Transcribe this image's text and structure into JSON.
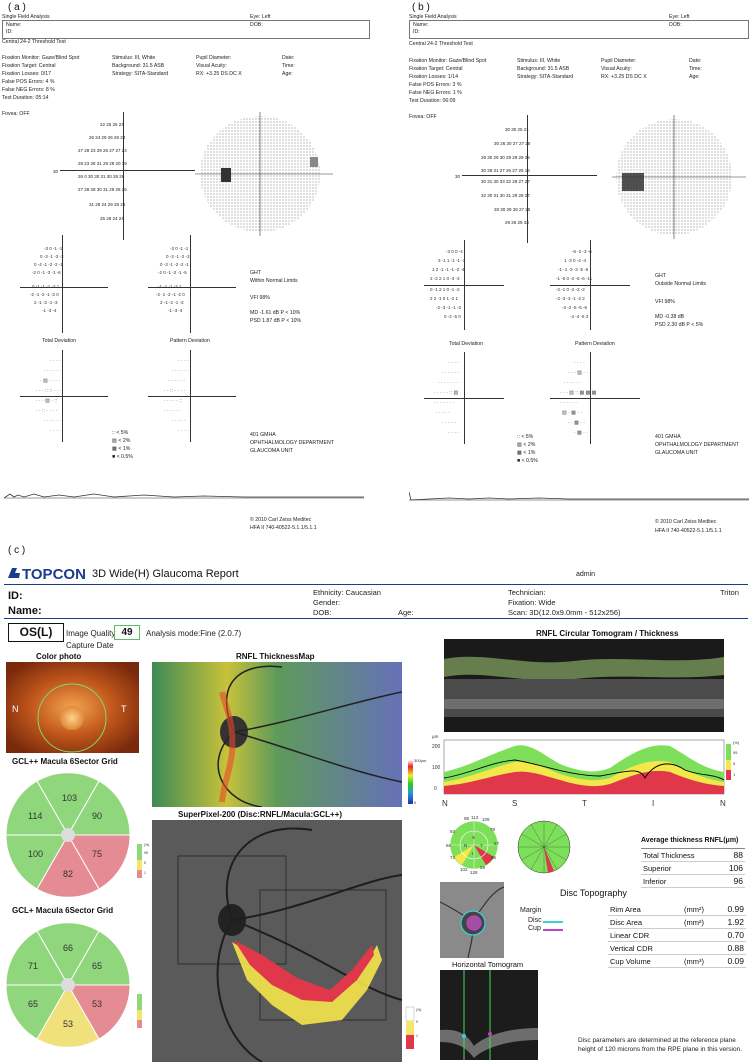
{
  "panel_labels": {
    "a": "( a )",
    "b": "( b )",
    "c": "( c )"
  },
  "hfa_a": {
    "title": "Single Field Analysis",
    "eye": "Eye: Left",
    "name": "Name:",
    "dob": "DOB:",
    "id": "ID:",
    "test": "Central 24-2 Threshold Test",
    "fixation_monitor": "Fixation Monitor: Gaze/Blind Spot",
    "fixation_target": "Fixation Target: Central",
    "fixation_losses": "Fixation Losses: 0/17",
    "false_pos": "False POS Errors:  4 %",
    "false_neg": "False NEG Errors:  8 %",
    "test_duration": "Test Duration: 05:14",
    "fovea": "Fovea: OFF",
    "stimulus": "Stimulus: III, White",
    "background": "Background: 31.5 ASB",
    "strategy": "Strategy: SITA-Standard",
    "pupil": "Pupil Diameter:",
    "acuity": "Visual Acuity:",
    "rx": "RX: +3.25 DS     DC  X",
    "date": "Date:",
    "time": "Time:",
    "age": "Age:",
    "ght_label": "GHT",
    "ght_value": "Within Normal Limits",
    "vfi": "VFI   98%",
    "md": "MD     -1.61 dB  P < 10%",
    "psd": "PSD    1.87 dB  P < 10%",
    "total_dev": "Total Deviation",
    "pattern_dev": "Pattern Deviation",
    "legend": [
      ":: < 5%",
      "▨ < 2%",
      "▩ < 1%",
      "■ < 0.5%"
    ],
    "site1": "401 GMHA",
    "site2": "OPHTHALMOLOGY DEPARTMENT",
    "site3": "GLAUCOMA UNIT",
    "copyright": "© 2010 Carl Zeiss Meditec",
    "version": "HFA II 740-40522-5.1.1/5.1.1",
    "axis_num": "30",
    "threshold_rows": [
      "22   25   26   24",
      "26   24   29   26   26   24",
      "27   28   23   29   26   27   27   24",
      "28   23   28   31   29   28   20   19",
      "26   0    30   30   31   30   28   26",
      "27   28   28   30   31   29   28   25",
      "31   28   24   29   28   26",
      "25   28   24   24"
    ]
  },
  "hfa_b": {
    "title": "Single Field Analysis",
    "eye": "Eye: Left",
    "name": "Name:",
    "dob": "DOB:",
    "id": "ID:",
    "test": "Central 24-2 Threshold Test",
    "fixation_monitor": "Fixation Monitor: Gaze/Blind Spot",
    "fixation_target": "Fixation Target: Central",
    "fixation_losses": "Fixation Losses: 1/14",
    "false_pos": "False POS Errors:  3 %",
    "false_neg": "False NEG Errors:  1 %",
    "test_duration": "Test Duration: 06:09",
    "fovea": "Fovea: OFF",
    "stimulus": "Stimulus: III, White",
    "background": "Background: 31.5 ASB",
    "strategy": "Strategy: SITA-Standard",
    "pupil": "Pupil Diameter:",
    "acuity": "Visual Acuity:",
    "rx": "RX: +3.25 DS     DC  X",
    "date": "Date:",
    "time": "Time:",
    "age": "Age:",
    "ght_label": "GHT",
    "ght_value": "Outside Normal Limits",
    "vfi": "VFI   98%",
    "md": "MD     -0.38 dB",
    "psd": "PSD    2.30 dB  P < 5%",
    "total_dev": "Total Deviation",
    "pattern_dev": "Pattern Deviation",
    "legend": [
      ":: < 5%",
      "▨ < 2%",
      "▩ < 1%",
      "■ < 0.5%"
    ],
    "site1": "401 GMHA",
    "site2": "OPHTHALMOLOGY DEPARTMENT",
    "site3": "GLAUCOMA UNIT",
    "copyright": "© 2010 Carl Zeiss Meditec",
    "version": "HFA II 740-40522-5.1.1/5.1.1",
    "axis_num": "30",
    "threshold_rows": [
      "30   30   25   21",
      "30   26   30   27   27   25",
      "29   30   29   30   29   29   29   25",
      "30   28   31   27   26   27   25   16",
      "30   31   30   33   32   28   27   27",
      "32   30   31   30   31   29   28   27",
      "28   30   29   28   27   25",
      "29   26   29   33"
    ]
  },
  "topcon": {
    "logo": "TOPCON",
    "report_title": "3D Wide(H) Glaucoma Report",
    "admin": "admin",
    "triton": "Triton",
    "id_label": "ID:",
    "name_label": "Name:",
    "ethnicity": "Ethnicity: Caucasian",
    "gender": "Gender:",
    "dob": "DOB:",
    "age": "Age:",
    "technician": "Technician:",
    "fixation": "Fixation: Wide",
    "scan": "Scan: 3D(12.0x9.0mm - 512x256)",
    "eye": "OS(L)",
    "image_quality_label": "Image Quality",
    "image_quality": "49",
    "analysis_mode": "Analysis mode:Fine (2.0.7)",
    "capture_date": "Capture Date",
    "color_photo": "Color photo",
    "photo_n": "N",
    "photo_t": "T",
    "rnfl_map": "RNFL ThicknessMap",
    "scale_top": "300μm",
    "scale_bottom": "0",
    "superpixel": "SuperPixel-200 (Disc:RNFL/Macula:GCL++)",
    "gclpp_title": "GCL++ Macula 6Sector Grid",
    "gclp_title": "GCL+ Macula 6Sector Grid",
    "gclpp_sectors": [
      "103",
      "90",
      "75",
      "82",
      "100",
      "114"
    ],
    "gclp_sectors": [
      "66",
      "65",
      "53",
      "53",
      "65",
      "71"
    ],
    "pct_scale": [
      "(%)",
      "95",
      "5",
      "1"
    ],
    "rnfl_circ": "RNFL Circular Tomogram / Thickness",
    "um": "μm",
    "y_ticks": [
      "200",
      "100",
      "0"
    ],
    "x_ticks": [
      "N",
      "S",
      "T",
      "I",
      "N"
    ],
    "clock_values": [
      "98",
      "113",
      "109",
      "79",
      "67",
      "65",
      "59",
      "128",
      "102",
      "73",
      "66",
      "93"
    ],
    "inner_values": [
      "S",
      "T",
      "I",
      "N"
    ],
    "avg_title": "Average thickness RNFL(μm)",
    "avg_rows": [
      {
        "label": "Total Thickness",
        "value": "88"
      },
      {
        "label": "Superior",
        "value": "106"
      },
      {
        "label": "Inferior",
        "value": "96"
      }
    ],
    "disc_topo": "Disc Topography",
    "margin": "Margin",
    "disc": "Disc",
    "cup": "Cup",
    "topo_rows": [
      {
        "label": "Rim Area",
        "unit": "(mm²)",
        "value": "0.99"
      },
      {
        "label": "Disc Area",
        "unit": "(mm²)",
        "value": "1.92"
      },
      {
        "label": "Linear CDR",
        "unit": "",
        "value": "0.70"
      },
      {
        "label": "Vertical CDR",
        "unit": "",
        "value": "0.88"
      },
      {
        "label": "Cup Volume",
        "unit": "(mm³)",
        "value": "0.09"
      }
    ],
    "horiz_tomo": "Horizontal Tomogram",
    "footnote1": "Disc parameters are determined at the reference plane",
    "footnote2": "height of 120 microns from the RPE plane in this version."
  },
  "colors": {
    "green": "#7fce6a",
    "yellow": "#f4e66a",
    "red": "#e8707a",
    "topcon_blue": "#1b3d8f"
  }
}
